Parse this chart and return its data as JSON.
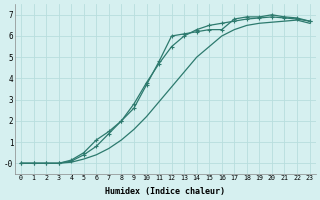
{
  "xlabel": "Humidex (Indice chaleur)",
  "bg_color": "#d6f0f0",
  "grid_color": "#b8dedd",
  "line_color": "#2d7a6e",
  "xlim": [
    -0.5,
    23.5
  ],
  "ylim": [
    -0.5,
    7.5
  ],
  "xticks": [
    0,
    1,
    2,
    3,
    4,
    5,
    6,
    7,
    8,
    9,
    10,
    11,
    12,
    13,
    14,
    15,
    16,
    17,
    18,
    19,
    20,
    21,
    22,
    23
  ],
  "yticks": [
    0,
    1,
    2,
    3,
    4,
    5,
    6,
    7
  ],
  "ytick_labels": [
    "-0",
    "1",
    "2",
    "3",
    "4",
    "5",
    "6",
    "7"
  ],
  "line1_x": [
    0,
    1,
    2,
    3,
    4,
    5,
    6,
    7,
    8,
    9,
    10,
    11,
    12,
    13,
    14,
    15,
    16,
    17,
    18,
    19,
    20,
    21,
    22,
    23
  ],
  "line1_y": [
    0,
    0,
    0,
    0,
    0.15,
    0.5,
    1.1,
    1.5,
    2.0,
    2.6,
    3.7,
    4.8,
    6.0,
    6.1,
    6.2,
    6.3,
    6.3,
    6.8,
    6.9,
    6.9,
    7.0,
    6.9,
    6.85,
    6.7
  ],
  "line2_x": [
    0,
    1,
    2,
    3,
    4,
    5,
    6,
    7,
    8,
    9,
    10,
    11,
    12,
    13,
    14,
    15,
    16,
    17,
    18,
    19,
    20,
    21,
    22,
    23
  ],
  "line2_y": [
    0,
    0,
    0,
    0,
    0.1,
    0.4,
    0.8,
    1.4,
    2.0,
    2.8,
    3.8,
    4.7,
    5.5,
    6.0,
    6.3,
    6.5,
    6.6,
    6.7,
    6.8,
    6.85,
    6.9,
    6.85,
    6.8,
    6.7
  ],
  "line3_x": [
    0,
    1,
    2,
    3,
    4,
    5,
    6,
    7,
    8,
    9,
    10,
    11,
    12,
    13,
    14,
    15,
    16,
    17,
    18,
    19,
    20,
    21,
    22,
    23
  ],
  "line3_y": [
    0,
    0,
    0,
    0,
    0.05,
    0.2,
    0.4,
    0.7,
    1.1,
    1.6,
    2.2,
    2.9,
    3.6,
    4.3,
    5.0,
    5.5,
    6.0,
    6.3,
    6.5,
    6.6,
    6.65,
    6.7,
    6.75,
    6.6
  ]
}
